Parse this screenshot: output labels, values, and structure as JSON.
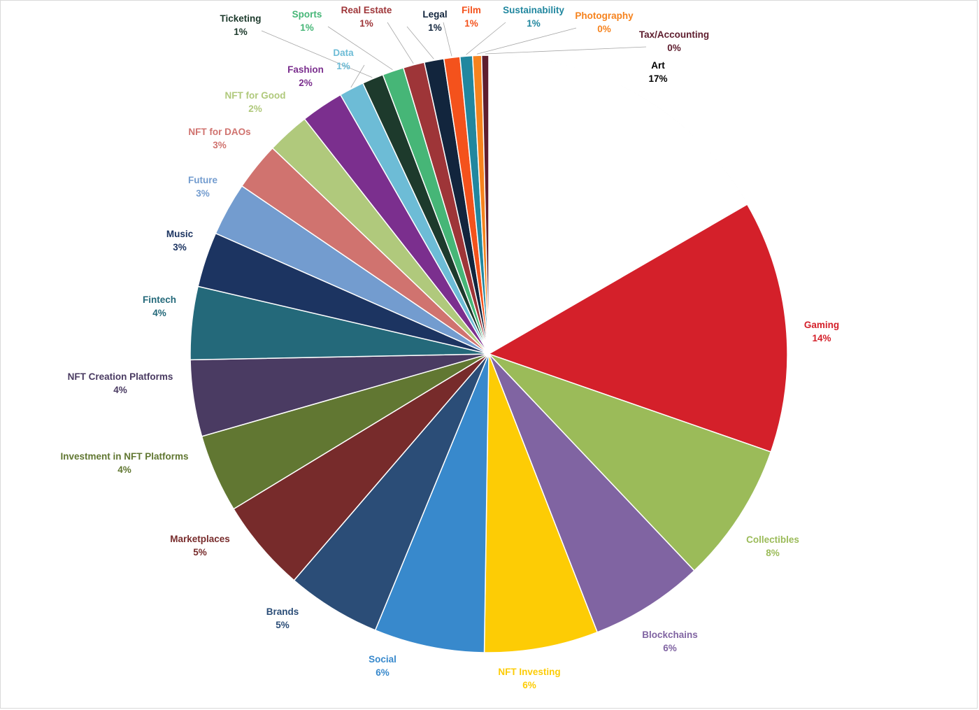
{
  "chart_data": {
    "type": "pie",
    "title": "",
    "slices": [
      {
        "label": "Art",
        "pct_label": "17%",
        "value": 17.3,
        "color": "#ffffff",
        "text_color": "#000000"
      },
      {
        "label": "Gaming",
        "pct_label": "14%",
        "value": 14.2,
        "color": "#d4202a",
        "text_color": "#d4202a"
      },
      {
        "label": "Collectibles",
        "pct_label": "8%",
        "value": 7.9,
        "color": "#9bbb59",
        "text_color": "#9bbb59"
      },
      {
        "label": "Blockchains",
        "pct_label": "6%",
        "value": 6.4,
        "color": "#8064a2",
        "text_color": "#8064a2"
      },
      {
        "label": "NFT Investing",
        "pct_label": "6%",
        "value": 6.4,
        "color": "#fdcc05",
        "text_color": "#fdcc05"
      },
      {
        "label": "Social",
        "pct_label": "6%",
        "value": 6.2,
        "color": "#3889cc",
        "text_color": "#3889cc"
      },
      {
        "label": "Brands",
        "pct_label": "5%",
        "value": 5.3,
        "color": "#2b4d77",
        "text_color": "#2b4d77"
      },
      {
        "label": "Marketplaces",
        "pct_label": "5%",
        "value": 5.2,
        "color": "#772b2b",
        "text_color": "#772b2b"
      },
      {
        "label": "Investment in NFT Platforms",
        "pct_label": "4%",
        "value": 4.4,
        "color": "#617732",
        "text_color": "#617732"
      },
      {
        "label": "NFT Creation Platforms",
        "pct_label": "4%",
        "value": 4.3,
        "color": "#4a3b62",
        "text_color": "#4a3b62"
      },
      {
        "label": "Fintech",
        "pct_label": "4%",
        "value": 4.1,
        "color": "#24697a",
        "text_color": "#24697a"
      },
      {
        "label": "Music",
        "pct_label": "3%",
        "value": 3.1,
        "color": "#1c3461",
        "text_color": "#1c3461"
      },
      {
        "label": "Future",
        "pct_label": "3%",
        "value": 3.0,
        "color": "#739ccf",
        "text_color": "#739ccf"
      },
      {
        "label": "NFT for DAOs",
        "pct_label": "3%",
        "value": 2.7,
        "color": "#d0736f",
        "text_color": "#d0736f"
      },
      {
        "label": "NFT for Good",
        "pct_label": "2%",
        "value": 2.4,
        "color": "#b0c97c",
        "text_color": "#b0c97c"
      },
      {
        "label": "Fashion",
        "pct_label": "2%",
        "value": 2.4,
        "color": "#7b2f8e",
        "text_color": "#7b2f8e"
      },
      {
        "label": "Data",
        "pct_label": "1%",
        "value": 1.4,
        "color": "#6dbcd6",
        "text_color": "#6dbcd6"
      },
      {
        "label": "Ticketing",
        "pct_label": "1%",
        "value": 1.2,
        "color": "#1d3a2c",
        "text_color": "#1d3a2c"
      },
      {
        "label": "Sports",
        "pct_label": "1%",
        "value": 1.2,
        "color": "#46b677",
        "text_color": "#46b677"
      },
      {
        "label": "Real Estate",
        "pct_label": "1%",
        "value": 1.2,
        "color": "#9e3538",
        "text_color": "#9e3538"
      },
      {
        "label": "Legal",
        "pct_label": "1%",
        "value": 1.1,
        "color": "#12253d",
        "text_color": "#12253d"
      },
      {
        "label": "Film",
        "pct_label": "1%",
        "value": 0.9,
        "color": "#f4521c",
        "text_color": "#f4521c"
      },
      {
        "label": "Sustainability",
        "pct_label": "1%",
        "value": 0.7,
        "color": "#21879f",
        "text_color": "#21879f"
      },
      {
        "label": "Photography",
        "pct_label": "0%",
        "value": 0.5,
        "color": "#f6831e",
        "text_color": "#f6831e"
      },
      {
        "label": "Tax/Accounting",
        "pct_label": "0%",
        "value": 0.4,
        "color": "#5e1d2e",
        "text_color": "#5e1d2e"
      }
    ]
  }
}
